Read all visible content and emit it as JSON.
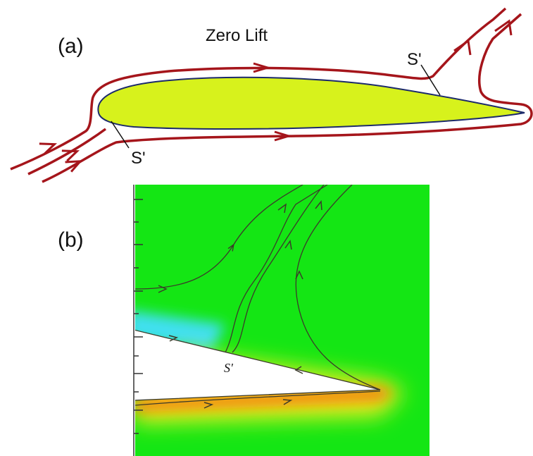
{
  "panel_a": {
    "label": "(a)",
    "title": "Zero Lift",
    "annotations": [
      "S'",
      "S'"
    ]
  },
  "panel_b": {
    "label": "(b)",
    "annotations": [
      "S'"
    ]
  }
}
